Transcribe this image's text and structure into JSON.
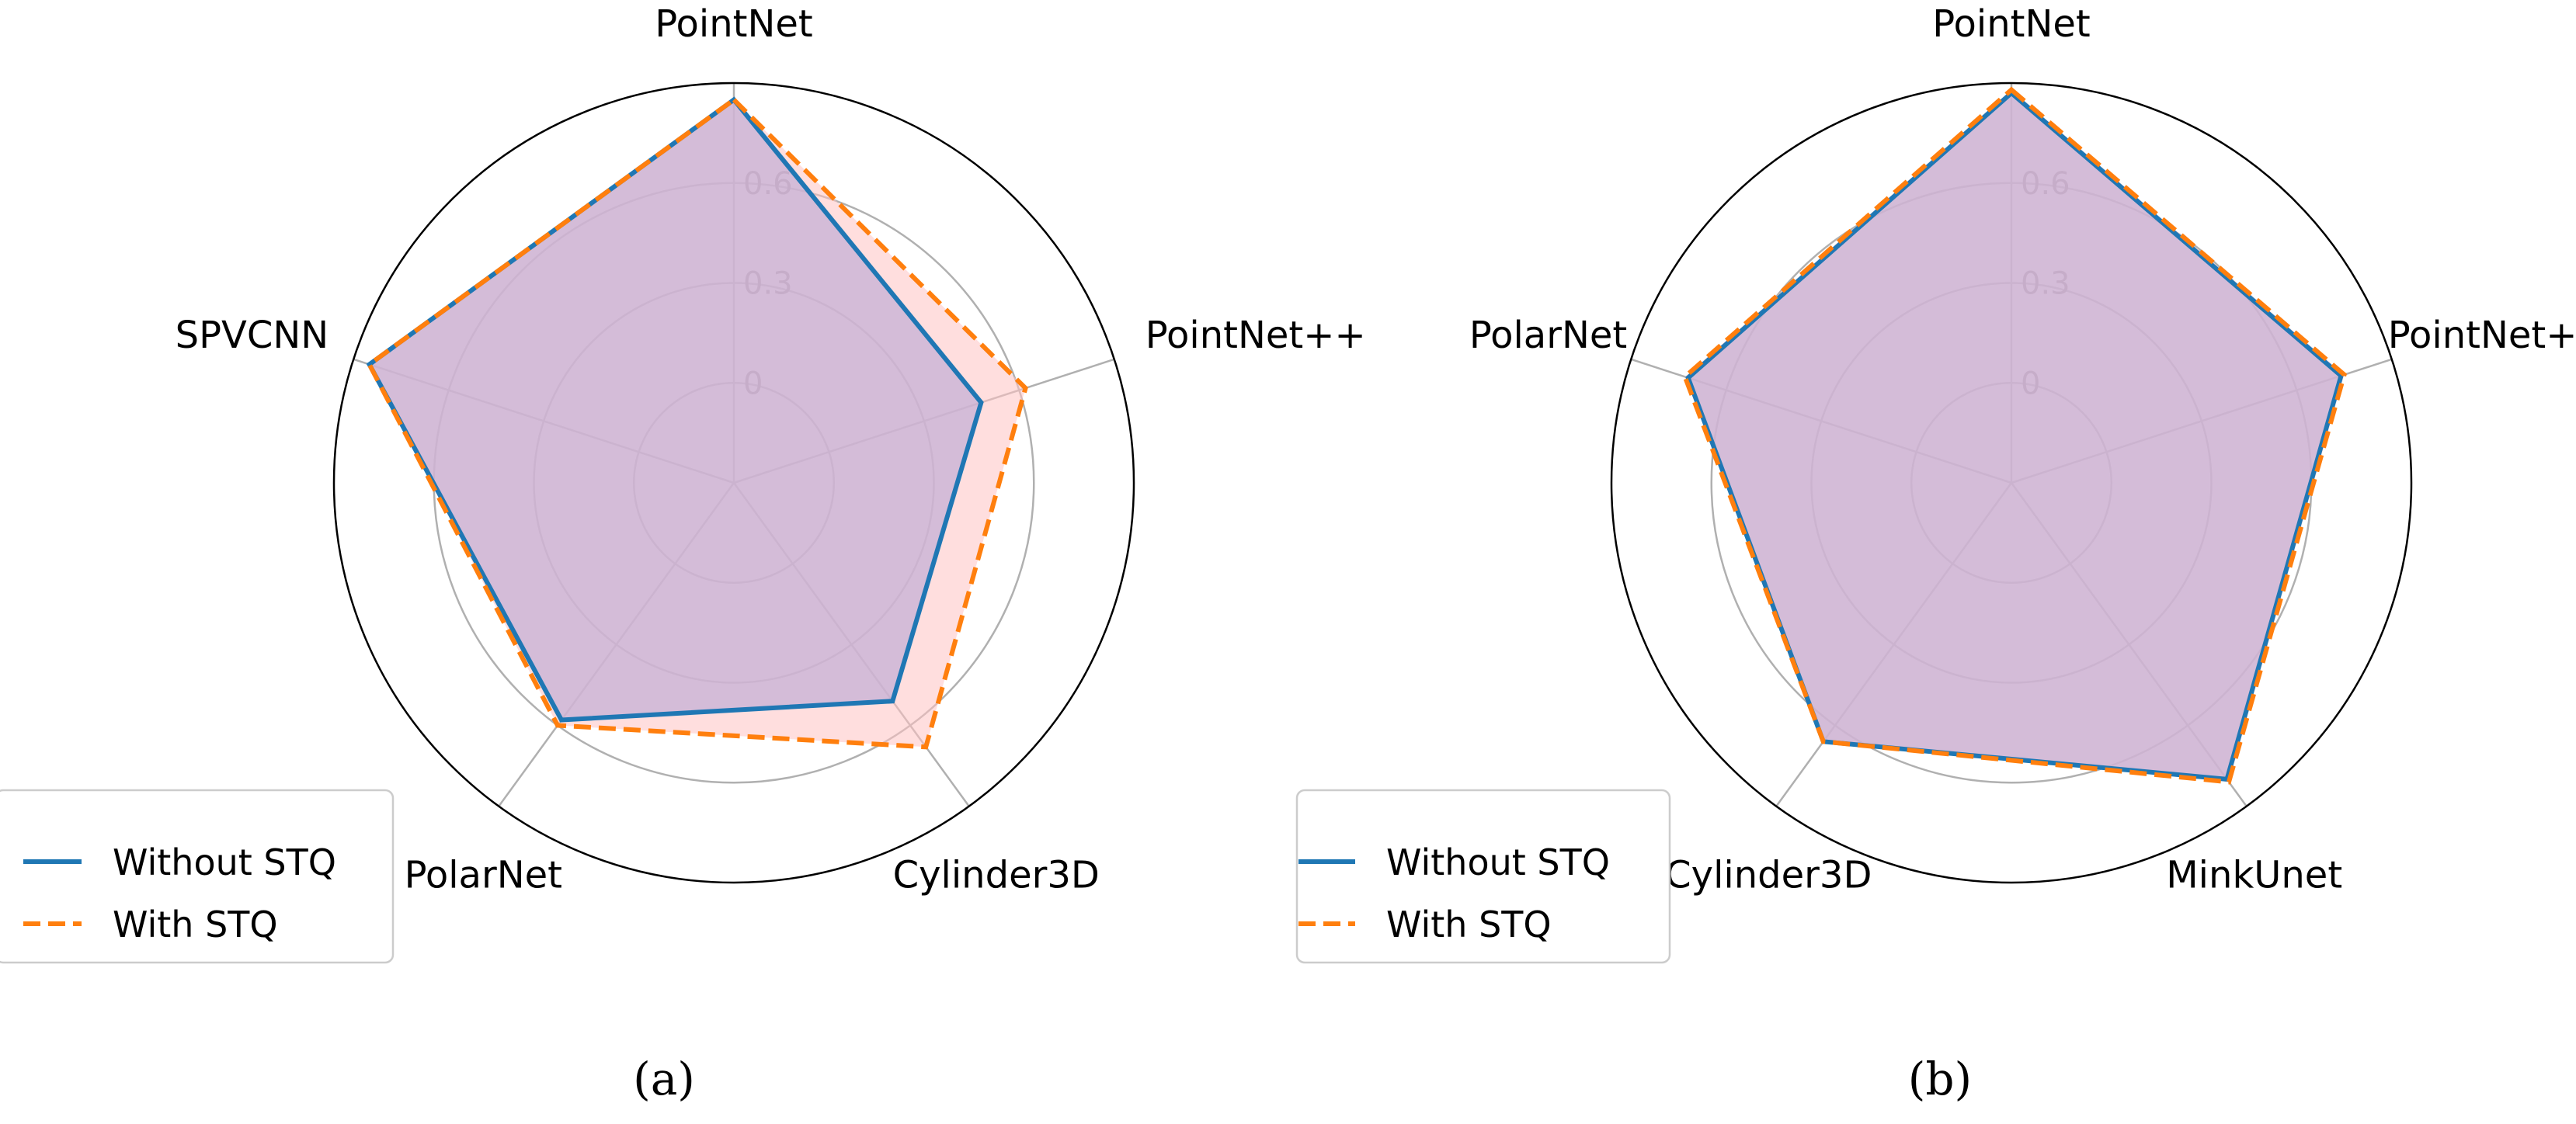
{
  "colors": {
    "without": "#1f77b4",
    "with": "#ff7f0e",
    "fill_without": "#c5b0d5",
    "fill_with": "#ffc2c2"
  },
  "legend": {
    "without_label": "Without STQ",
    "with_label": "With STQ"
  },
  "chart_data": [
    {
      "type": "radar",
      "caption": "(a)",
      "axes": [
        "PointNet",
        "PointNet++",
        "Cylinder3D",
        "PolarNet",
        "SPVCNN"
      ],
      "rlim": [
        -0.3,
        0.9
      ],
      "rticks": [
        0,
        0.3,
        0.6
      ],
      "rtick_labels": [
        "0",
        "0.3",
        "0.6"
      ],
      "grid": true,
      "legend_position": "lower-left",
      "series": [
        {
          "name": "Without STQ",
          "values": [
            0.85,
            0.48,
            0.51,
            0.58,
            0.85
          ]
        },
        {
          "name": "With STQ",
          "values": [
            0.85,
            0.62,
            0.68,
            0.6,
            0.85
          ]
        }
      ]
    },
    {
      "type": "radar",
      "caption": "(b)",
      "axes": [
        "PointNet",
        "PointNet++",
        "MinkUnet",
        "Cylinder3D",
        "PolarNet"
      ],
      "rlim": [
        -0.3,
        0.9
      ],
      "rticks": [
        0,
        0.3,
        0.6
      ],
      "rtick_labels": [
        "0",
        "0.3",
        "0.6"
      ],
      "grid": true,
      "legend_position": "lower-left",
      "series": [
        {
          "name": "Without STQ",
          "values": [
            0.87,
            0.74,
            0.8,
            0.66,
            0.72
          ]
        },
        {
          "name": "With STQ",
          "values": [
            0.88,
            0.75,
            0.81,
            0.66,
            0.73
          ]
        }
      ]
    }
  ]
}
